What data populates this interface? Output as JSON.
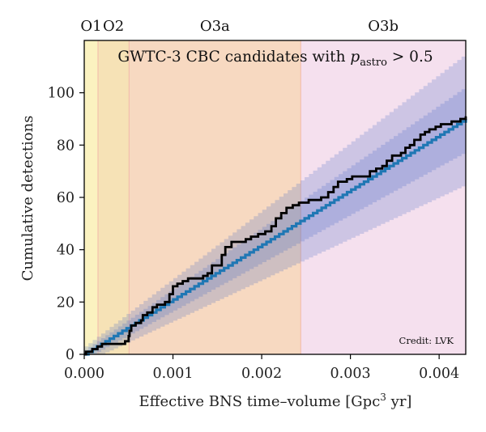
{
  "chart_data": {
    "type": "line",
    "title": {
      "main": "GWTC-3 CBC candidates with ",
      "p_symbol": "p",
      "p_subscript": "astro",
      "tail": " > 0.5"
    },
    "xlabel": {
      "main": "Effective BNS time–volume [Gpc",
      "sup": "3",
      "tail": " yr]"
    },
    "ylabel": "Cumulative detections",
    "credit": "Credit: LVK",
    "xlim": [
      0,
      0.0043
    ],
    "ylim": [
      0,
      120
    ],
    "xticks": [
      0.0,
      0.001,
      0.002,
      0.003,
      0.004
    ],
    "xtick_labels": [
      "0.000",
      "0.001",
      "0.002",
      "0.003",
      "0.004"
    ],
    "yticks": [
      0,
      20,
      40,
      60,
      80,
      100
    ],
    "ytick_labels": [
      "0",
      "20",
      "40",
      "60",
      "80",
      "100"
    ],
    "grid": false,
    "runs": [
      {
        "label": "O1",
        "start": 0.0,
        "end": 0.000155,
        "color": "#fbf2c0"
      },
      {
        "label": "O2",
        "start": 0.000155,
        "end": 0.000505,
        "color": "#f6e2b6"
      },
      {
        "label": "O3a",
        "start": 0.000505,
        "end": 0.00244,
        "color": "#f7d9c1"
      },
      {
        "label": "O3b",
        "start": 0.00244,
        "end": 0.0043,
        "color": "#f5e0ee"
      }
    ],
    "run_boundary_color": "#f2b9a8",
    "expected": {
      "slope": 20930,
      "line_color": "#1f77b4",
      "band_color": "#3f63c4",
      "band_opacity": 0.22,
      "inner_band_fraction": 0.12,
      "inner_band_offset": 1.7,
      "outer_band_fraction": 0.245,
      "outer_band_offset": 3.0
    },
    "observed": {
      "color": "#000000",
      "points": [
        [
          0.0,
          0
        ],
        [
          2e-05,
          1
        ],
        [
          9e-05,
          2
        ],
        [
          0.00015,
          3
        ],
        [
          0.0002,
          4
        ],
        [
          0.0004,
          4
        ],
        [
          0.00046,
          5
        ],
        [
          0.0005,
          7
        ],
        [
          0.00051,
          9
        ],
        [
          0.00053,
          11
        ],
        [
          0.00058,
          12
        ],
        [
          0.00064,
          13
        ],
        [
          0.00066,
          15
        ],
        [
          0.00071,
          16
        ],
        [
          0.00077,
          18
        ],
        [
          0.00082,
          19
        ],
        [
          0.00091,
          20
        ],
        [
          0.00096,
          23
        ],
        [
          0.001,
          26
        ],
        [
          0.00105,
          27
        ],
        [
          0.00111,
          28
        ],
        [
          0.00117,
          29
        ],
        [
          0.00134,
          30
        ],
        [
          0.00139,
          31
        ],
        [
          0.00144,
          34
        ],
        [
          0.00155,
          38
        ],
        [
          0.00159,
          41
        ],
        [
          0.00166,
          43
        ],
        [
          0.00182,
          44
        ],
        [
          0.00188,
          45
        ],
        [
          0.00196,
          46
        ],
        [
          0.00204,
          47
        ],
        [
          0.00211,
          49
        ],
        [
          0.00216,
          52
        ],
        [
          0.00222,
          54
        ],
        [
          0.00228,
          56
        ],
        [
          0.00235,
          57
        ],
        [
          0.00242,
          58
        ],
        [
          0.00253,
          59
        ],
        [
          0.00267,
          60
        ],
        [
          0.00275,
          62
        ],
        [
          0.00281,
          64
        ],
        [
          0.00286,
          66
        ],
        [
          0.00296,
          67
        ],
        [
          0.00302,
          68
        ],
        [
          0.00322,
          70
        ],
        [
          0.00329,
          71
        ],
        [
          0.00336,
          72
        ],
        [
          0.00341,
          74
        ],
        [
          0.00347,
          76
        ],
        [
          0.00357,
          77
        ],
        [
          0.00362,
          79
        ],
        [
          0.00367,
          80
        ],
        [
          0.00372,
          82
        ],
        [
          0.00379,
          84
        ],
        [
          0.00384,
          85
        ],
        [
          0.00389,
          86
        ],
        [
          0.00396,
          87
        ],
        [
          0.00402,
          88
        ],
        [
          0.00414,
          89
        ],
        [
          0.00424,
          90
        ],
        [
          0.0043,
          91
        ]
      ]
    }
  }
}
